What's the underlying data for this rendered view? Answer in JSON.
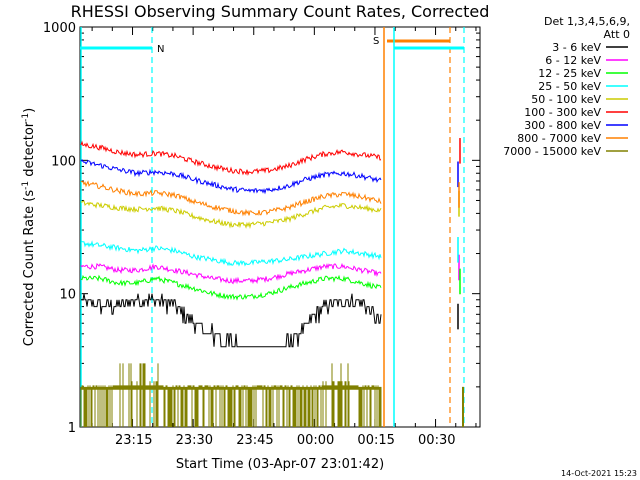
{
  "chart_data": {
    "type": "line",
    "title": "RHESSI Observing Summary Count Rates, Corrected",
    "xlabel": "Start Time (03-Apr-07 23:01:42)",
    "ylabel_main": "Corrected Count Rate (s",
    "ylabel_sup1": "-1",
    "ylabel_mid": " detector",
    "ylabel_sup2": "-1",
    "ylabel_end": ")",
    "y_scale": "log",
    "ylim": [
      1,
      1000
    ],
    "y_ticks": [
      {
        "value": 1,
        "label": "1"
      },
      {
        "value": 10,
        "label": "10"
      },
      {
        "value": 100,
        "label": "100"
      },
      {
        "value": 1000,
        "label": "1000"
      }
    ],
    "x_range_minutes": [
      0,
      41
    ],
    "x_ticks": [
      {
        "minute": 13.3,
        "label": "23:15"
      },
      {
        "minute": 28.3,
        "label": "23:30"
      },
      {
        "minute": 43.3,
        "label": "23:45"
      },
      {
        "minute": 58.3,
        "label": "00:00"
      },
      {
        "minute": 73.3,
        "label": "00:15"
      },
      {
        "minute": 88.3,
        "label": "00:30"
      }
    ],
    "x_span_minutes": 99,
    "legend_header": [
      "Det 1,3,4,5,6,9,",
      "Att 0"
    ],
    "series": [
      {
        "name": "3 - 6 keV",
        "color": "#000000",
        "profile": [
          9,
          8,
          8,
          9,
          9,
          8,
          6,
          5,
          4.2,
          4,
          4,
          4.2,
          5.5,
          8,
          9,
          8.5,
          6
        ]
      },
      {
        "name": "6 - 12 keV",
        "color": "#ff00ff",
        "profile": [
          16,
          16,
          15,
          15,
          16,
          15,
          14,
          13,
          12.5,
          12.5,
          13,
          14,
          15,
          16,
          16,
          15,
          14
        ]
      },
      {
        "name": "12 - 25 keV",
        "color": "#00ff00",
        "profile": [
          13,
          13,
          12,
          12,
          13,
          12,
          11,
          10,
          9.5,
          9.5,
          10,
          11,
          12,
          13,
          13,
          12,
          11
        ]
      },
      {
        "name": "25 - 50 keV",
        "color": "#00ffff",
        "profile": [
          24,
          23,
          22,
          21,
          22,
          21,
          19,
          18,
          17,
          17,
          17.5,
          18,
          19,
          20,
          21,
          20,
          19
        ]
      },
      {
        "name": "50 - 100 keV",
        "color": "#cccc00",
        "profile": [
          48,
          46,
          44,
          43,
          44,
          42,
          38,
          35,
          33,
          33,
          34,
          36,
          40,
          44,
          46,
          44,
          42
        ]
      },
      {
        "name": "100 - 300 keV",
        "color": "#ff0000",
        "profile": [
          132,
          125,
          115,
          110,
          113,
          108,
          98,
          90,
          84,
          82,
          84,
          90,
          102,
          112,
          116,
          110,
          105
        ]
      },
      {
        "name": "300 - 800 keV",
        "color": "#0000ff",
        "profile": [
          98,
          92,
          85,
          80,
          82,
          79,
          72,
          66,
          61,
          59,
          60,
          64,
          72,
          78,
          80,
          76,
          70
        ]
      },
      {
        "name": "800 - 7000 keV",
        "color": "#ff8000",
        "profile": [
          68,
          64,
          59,
          56,
          57,
          55,
          49,
          45,
          42,
          40,
          41,
          44,
          49,
          54,
          56,
          53,
          49
        ]
      },
      {
        "name": "7000 - 15000 keV",
        "color": "#808000",
        "profile": [
          2,
          2,
          2,
          2,
          2,
          2,
          2,
          2,
          2,
          2,
          2,
          2,
          2,
          2,
          2,
          2,
          2
        ]
      }
    ],
    "annotations": {
      "night_label": "N",
      "saa_label": "S"
    },
    "footer_date": "14-Oct-2021 15:23"
  }
}
